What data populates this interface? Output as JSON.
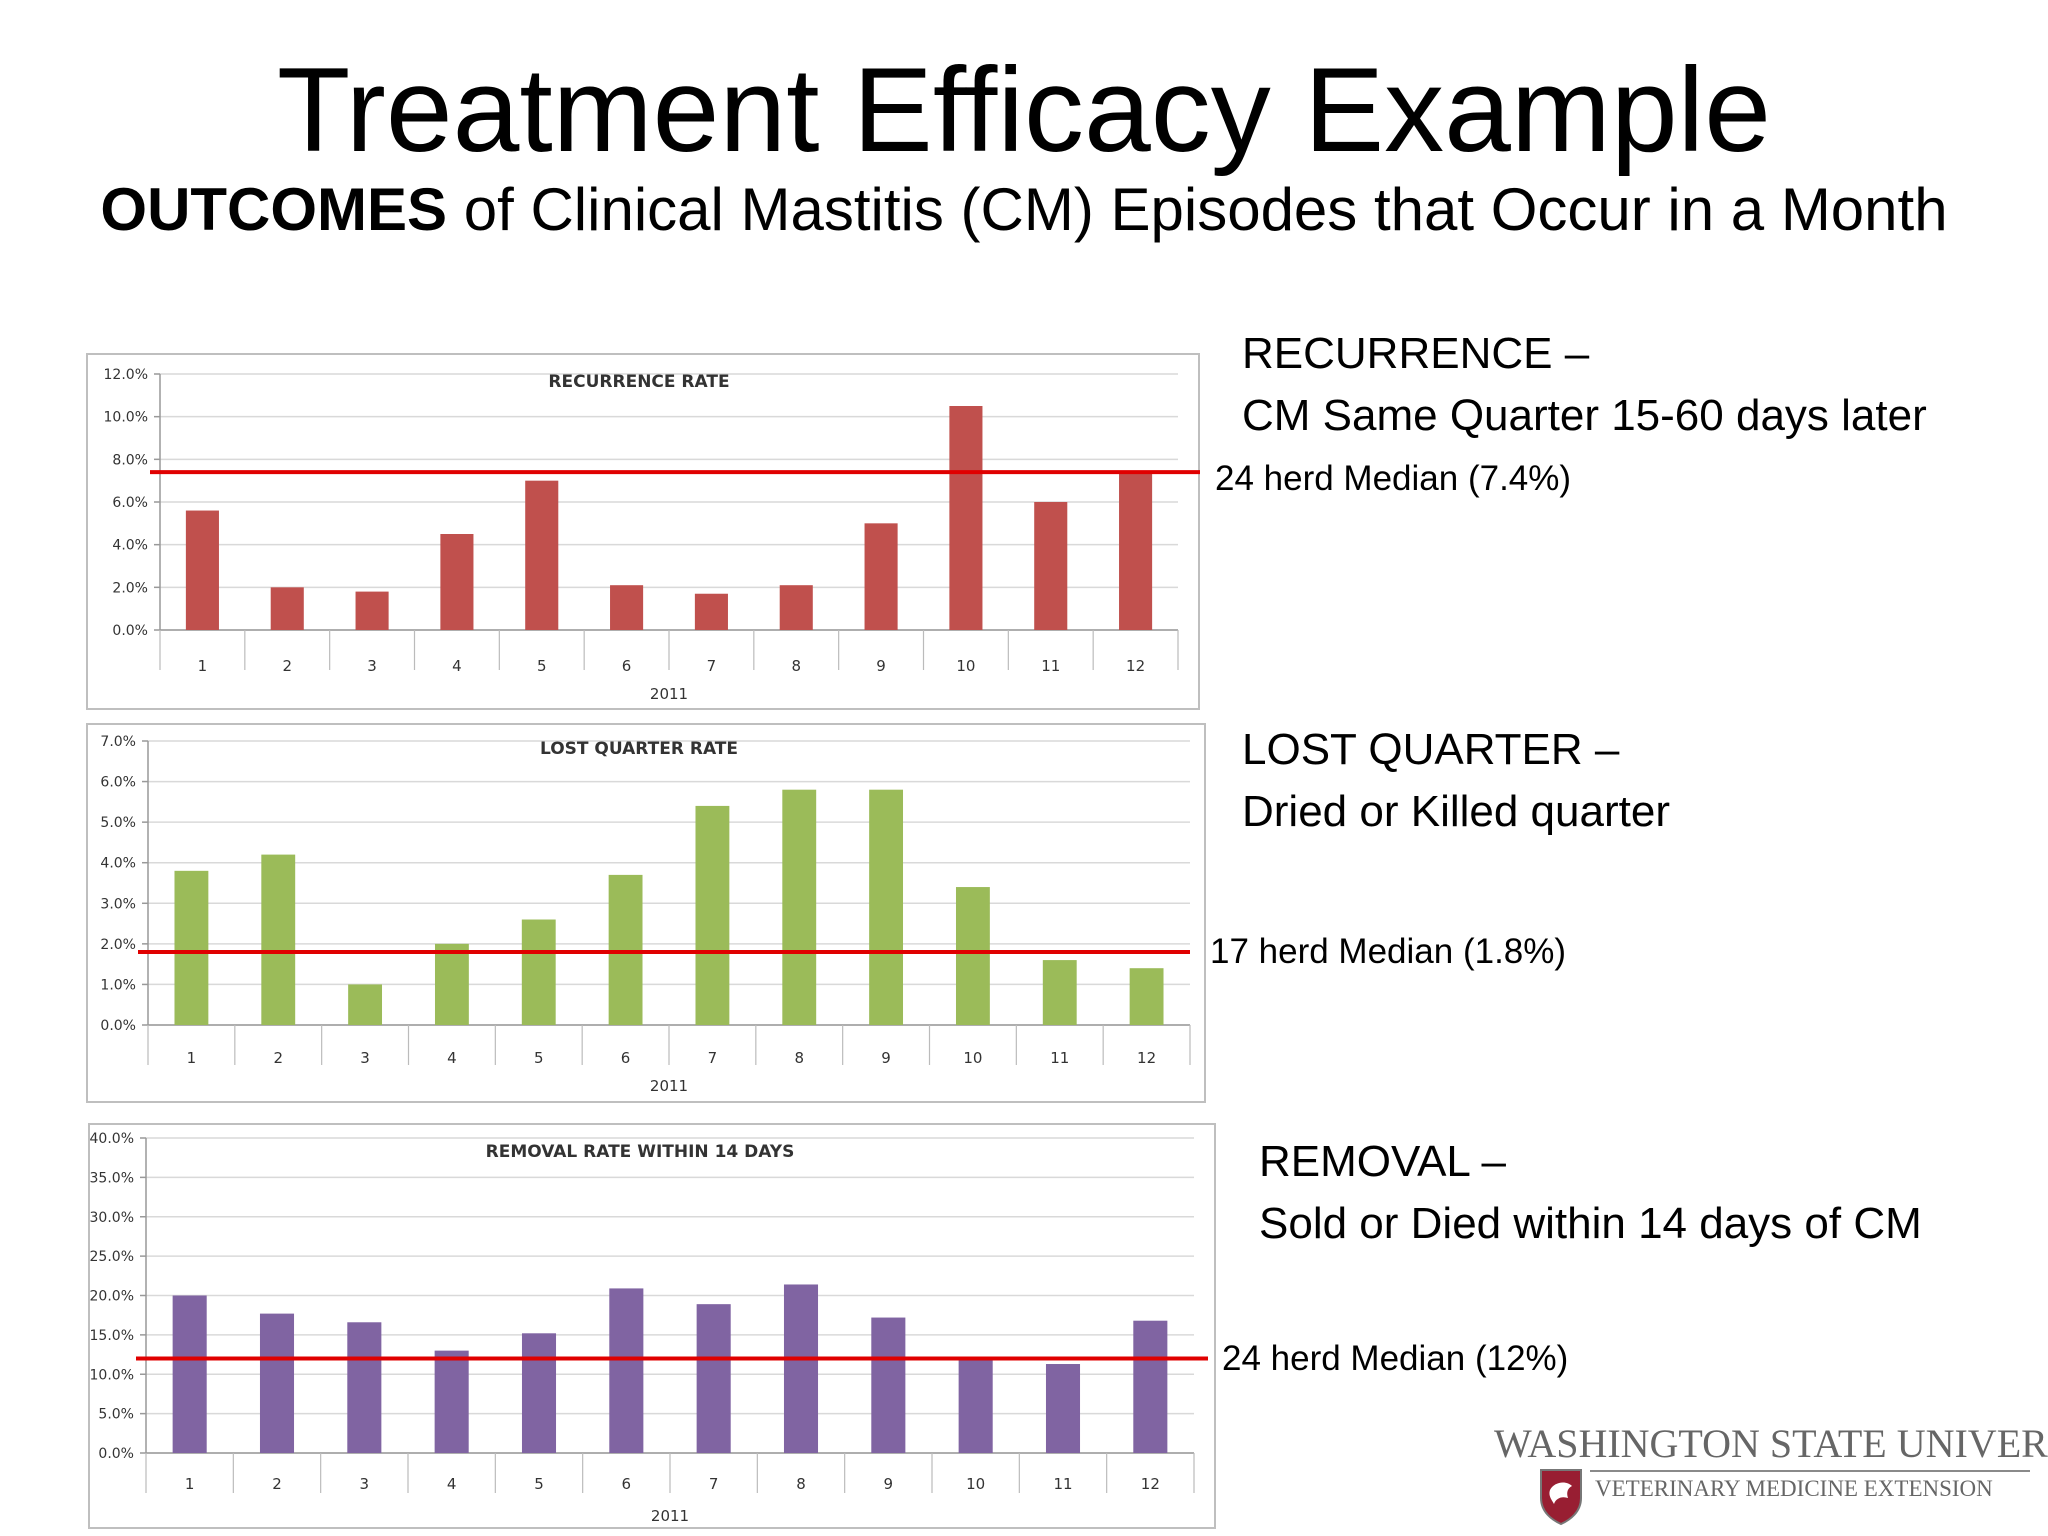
{
  "slide": {
    "title": "Treatment Efficacy Example",
    "subtitle_bold": "OUTCOMES",
    "subtitle_rest": " of Clinical Mastitis (CM) Episodes that Occur in a Month"
  },
  "descriptions": [
    {
      "heading": "RECURRENCE –",
      "detail": "CM Same Quarter 15-60 days later",
      "median_label": "24 herd Median (7.4%)"
    },
    {
      "heading": "LOST QUARTER –",
      "detail": "Dried or Killed quarter",
      "median_label": "17 herd Median (1.8%)"
    },
    {
      "heading": "REMOVAL –",
      "detail": "Sold or Died within 14 days of CM",
      "median_label": "24 herd Median (12%)"
    }
  ],
  "logo": {
    "university": "WASHINGTON STATE UNIVERSITY",
    "extension": "VETERINARY MEDICINE EXTENSION"
  },
  "colors": {
    "recurrence": "#c0504d",
    "lost_quarter": "#9bbb59",
    "removal": "#8064a2",
    "median_line": "#e00000"
  },
  "chart_data": [
    {
      "type": "bar",
      "title": "RECURRENCE RATE",
      "xlabel": "2011",
      "categories": [
        "1",
        "2",
        "3",
        "4",
        "5",
        "6",
        "7",
        "8",
        "9",
        "10",
        "11",
        "12"
      ],
      "values": [
        5.6,
        2.0,
        1.8,
        4.5,
        7.0,
        2.1,
        1.7,
        2.1,
        5.0,
        10.5,
        6.0,
        7.4
      ],
      "ylim": [
        0,
        12
      ],
      "yticks": [
        "0.0%",
        "2.0%",
        "4.0%",
        "6.0%",
        "8.0%",
        "10.0%",
        "12.0%"
      ],
      "median": 7.4,
      "grid": true,
      "color": "#c0504d"
    },
    {
      "type": "bar",
      "title": "LOST QUARTER RATE",
      "xlabel": "2011",
      "categories": [
        "1",
        "2",
        "3",
        "4",
        "5",
        "6",
        "7",
        "8",
        "9",
        "10",
        "11",
        "12"
      ],
      "values": [
        3.8,
        4.2,
        1.0,
        2.0,
        2.6,
        3.7,
        5.4,
        5.8,
        5.8,
        3.4,
        1.6,
        1.4
      ],
      "ylim": [
        0,
        7
      ],
      "yticks": [
        "0.0%",
        "1.0%",
        "2.0%",
        "3.0%",
        "4.0%",
        "5.0%",
        "6.0%",
        "7.0%"
      ],
      "median": 1.8,
      "grid": true,
      "color": "#9bbb59"
    },
    {
      "type": "bar",
      "title": "REMOVAL RATE WITHIN 14 DAYS",
      "xlabel": "2011",
      "categories": [
        "1",
        "2",
        "3",
        "4",
        "5",
        "6",
        "7",
        "8",
        "9",
        "10",
        "11",
        "12"
      ],
      "values": [
        20.0,
        17.7,
        16.6,
        13.0,
        15.2,
        20.9,
        18.9,
        21.4,
        17.2,
        11.9,
        11.3,
        16.8
      ],
      "ylim": [
        0,
        40
      ],
      "yticks": [
        "0.0%",
        "5.0%",
        "10.0%",
        "15.0%",
        "20.0%",
        "25.0%",
        "30.0%",
        "35.0%",
        "40.0%"
      ],
      "median": 12.0,
      "grid": true,
      "color": "#8064a2"
    }
  ]
}
